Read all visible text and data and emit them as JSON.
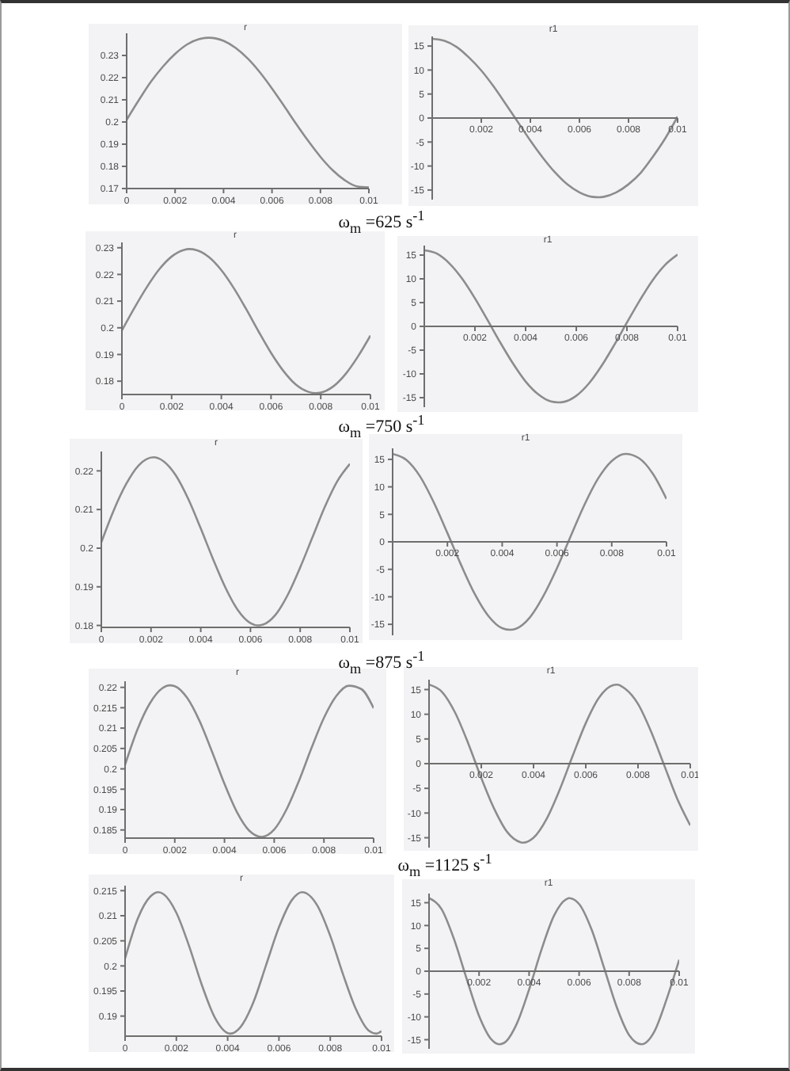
{
  "chart_data": [
    {
      "type": "line",
      "title": "r",
      "x": [
        0,
        0.0005,
        0.001,
        0.0015,
        0.002,
        0.0025,
        0.003,
        0.0034,
        0.004,
        0.0045,
        0.005,
        0.0055,
        0.006,
        0.0065,
        0.007,
        0.0075,
        0.008,
        0.0085,
        0.009,
        0.0095,
        0.01
      ],
      "values": [
        0.201,
        0.2098,
        0.2181,
        0.225,
        0.2307,
        0.235,
        0.2374,
        0.238,
        0.2366,
        0.2334,
        0.2286,
        0.2224,
        0.2151,
        0.2072,
        0.1991,
        0.1914,
        0.1843,
        0.1783,
        0.1738,
        0.171,
        0.1705
      ],
      "color": "#8c8c8c",
      "xlim": [
        0,
        0.01
      ],
      "xticks": [
        0,
        0.002,
        0.004,
        0.006,
        0.008,
        0.01
      ],
      "ylim": [
        0.17,
        0.24
      ],
      "yticks": [
        0.17,
        0.18,
        0.19,
        0.2,
        0.21,
        0.22,
        0.23
      ]
    },
    {
      "type": "line",
      "title": "r1",
      "x": [
        0,
        0.0005,
        0.001,
        0.0015,
        0.002,
        0.0025,
        0.003,
        0.0035,
        0.004,
        0.0045,
        0.005,
        0.0055,
        0.006,
        0.0065,
        0.0068,
        0.007,
        0.0075,
        0.008,
        0.0085,
        0.009,
        0.0095,
        0.01
      ],
      "values": [
        16.5,
        16.1,
        14.8,
        12.6,
        9.9,
        6.6,
        2.9,
        -0.9,
        -4.7,
        -8.2,
        -11.3,
        -13.8,
        -15.5,
        -16.4,
        -16.5,
        -16.4,
        -15.5,
        -13.8,
        -11.4,
        -8.0,
        -4.2,
        0.3
      ],
      "color": "#8c8c8c",
      "xlim": [
        0,
        0.01
      ],
      "xticks": [
        0.002,
        0.004,
        0.006,
        0.008,
        0.01
      ],
      "ylim": [
        -17,
        17
      ],
      "yticks": [
        -15,
        -10,
        -5,
        0,
        5,
        10,
        15
      ]
    },
    {
      "type": "line",
      "title": "r",
      "annotations": [
        "ω$_{m}$ =625 s$^{-1}$"
      ],
      "x": [
        0,
        0.0005,
        0.001,
        0.0015,
        0.002,
        0.0025,
        0.0027,
        0.003,
        0.0035,
        0.004,
        0.0045,
        0.005,
        0.0055,
        0.006,
        0.0065,
        0.007,
        0.0075,
        0.0078,
        0.008,
        0.0085,
        0.009,
        0.0095,
        0.01
      ],
      "values": [
        0.199,
        0.2074,
        0.2152,
        0.2219,
        0.2267,
        0.2292,
        0.2295,
        0.2291,
        0.2265,
        0.2216,
        0.2149,
        0.207,
        0.1986,
        0.1906,
        0.1838,
        0.1787,
        0.176,
        0.1755,
        0.1757,
        0.178,
        0.1827,
        0.1893,
        0.1971
      ],
      "color": "#8c8c8c",
      "xlim": [
        0,
        0.01
      ],
      "xticks": [
        0,
        0.002,
        0.004,
        0.006,
        0.008,
        0.01
      ],
      "ylim": [
        0.175,
        0.232
      ],
      "yticks": [
        0.18,
        0.19,
        0.2,
        0.21,
        0.22,
        0.23
      ]
    },
    {
      "type": "line",
      "title": "r1",
      "x": [
        0,
        0.0005,
        0.001,
        0.0015,
        0.002,
        0.0025,
        0.003,
        0.0035,
        0.004,
        0.0045,
        0.005,
        0.0053,
        0.0055,
        0.006,
        0.0065,
        0.007,
        0.0075,
        0.008,
        0.0085,
        0.009,
        0.0095,
        0.01
      ],
      "values": [
        16,
        15.3,
        13.2,
        10.0,
        5.9,
        1.3,
        -3.4,
        -7.8,
        -11.6,
        -14.3,
        -15.8,
        -16,
        -15.9,
        -14.6,
        -12.0,
        -8.3,
        -3.9,
        0.8,
        5.4,
        9.6,
        12.9,
        15.1
      ],
      "color": "#8c8c8c",
      "xlim": [
        0,
        0.01
      ],
      "xticks": [
        0.002,
        0.004,
        0.006,
        0.008,
        0.01
      ],
      "ylim": [
        -17,
        17
      ],
      "yticks": [
        -15,
        -10,
        -5,
        0,
        5,
        10,
        15
      ]
    },
    {
      "type": "line",
      "title": "r",
      "annotations": [
        "ω$_{m}$ =750 s$^{-1}$"
      ],
      "x": [
        0,
        0.0005,
        0.001,
        0.0015,
        0.0021,
        0.0025,
        0.003,
        0.0035,
        0.004,
        0.0045,
        0.005,
        0.0055,
        0.006,
        0.0063,
        0.0065,
        0.007,
        0.0075,
        0.008,
        0.0085,
        0.009,
        0.0095,
        0.01
      ],
      "values": [
        0.2015,
        0.2098,
        0.2166,
        0.2214,
        0.2235,
        0.2225,
        0.2188,
        0.2127,
        0.2051,
        0.1971,
        0.1897,
        0.1839,
        0.1806,
        0.18,
        0.1802,
        0.1827,
        0.1879,
        0.195,
        0.2029,
        0.2108,
        0.2174,
        0.2218
      ],
      "color": "#8c8c8c",
      "xlim": [
        0,
        0.01
      ],
      "xticks": [
        0,
        0.002,
        0.004,
        0.006,
        0.008,
        0.01
      ],
      "ylim": [
        0.1795,
        0.225
      ],
      "yticks": [
        0.18,
        0.19,
        0.2,
        0.21,
        0.22
      ]
    },
    {
      "type": "line",
      "title": "r1",
      "x": [
        0,
        0.0005,
        0.001,
        0.0015,
        0.002,
        0.0025,
        0.003,
        0.0035,
        0.004,
        0.0043,
        0.0045,
        0.005,
        0.0055,
        0.006,
        0.0065,
        0.007,
        0.0075,
        0.008,
        0.0085,
        0.009,
        0.0095,
        0.01
      ],
      "values": [
        16,
        14.9,
        11.9,
        7.2,
        1.6,
        -4.2,
        -9.5,
        -13.5,
        -15.7,
        -16,
        -15.8,
        -13.8,
        -9.9,
        -4.8,
        1.0,
        6.7,
        11.5,
        14.7,
        16,
        15.2,
        12.4,
        7.8
      ],
      "color": "#8c8c8c",
      "xlim": [
        0,
        0.01
      ],
      "xticks": [
        0.002,
        0.004,
        0.006,
        0.008,
        0.01
      ],
      "ylim": [
        -17,
        17
      ],
      "yticks": [
        -15,
        -10,
        -5,
        0,
        5,
        10,
        15
      ]
    },
    {
      "type": "line",
      "title": "r",
      "annotations": [
        "ω$_{m}$ =875 s$^{-1}$"
      ],
      "x": [
        0,
        0.0005,
        0.001,
        0.0015,
        0.0018,
        0.002,
        0.0025,
        0.003,
        0.0035,
        0.004,
        0.0045,
        0.005,
        0.0055,
        0.006,
        0.0065,
        0.007,
        0.0075,
        0.008,
        0.0085,
        0.009,
        0.0095,
        0.01
      ],
      "values": [
        0.201,
        0.2097,
        0.2161,
        0.2198,
        0.2205,
        0.2203,
        0.2174,
        0.2117,
        0.2042,
        0.1963,
        0.1894,
        0.1848,
        0.1833,
        0.1851,
        0.1901,
        0.1971,
        0.2051,
        0.2125,
        0.2179,
        0.2204,
        0.2196,
        0.2149
      ],
      "color": "#8c8c8c",
      "xlim": [
        0,
        0.01
      ],
      "xticks": [
        0,
        0.002,
        0.004,
        0.006,
        0.008,
        0.01
      ],
      "ylim": [
        0.183,
        0.2215
      ],
      "yticks": [
        0.185,
        0.19,
        0.195,
        0.2,
        0.205,
        0.21,
        0.215,
        0.22
      ]
    },
    {
      "type": "line",
      "title": "r1",
      "x": [
        0,
        0.0005,
        0.001,
        0.0015,
        0.002,
        0.0025,
        0.003,
        0.0035,
        0.0036,
        0.004,
        0.0045,
        0.005,
        0.0055,
        0.006,
        0.0065,
        0.007,
        0.0072,
        0.0075,
        0.008,
        0.0085,
        0.009,
        0.0095,
        0.01
      ],
      "values": [
        16,
        14.5,
        10.3,
        4.1,
        -2.9,
        -9.2,
        -13.9,
        -15.9,
        -16,
        -15.0,
        -11.2,
        -5.3,
        1.6,
        8.2,
        13.3,
        15.8,
        16,
        15.2,
        12.1,
        6.5,
        -0.3,
        -7.1,
        -12.5
      ],
      "color": "#8c8c8c",
      "xlim": [
        0,
        0.01
      ],
      "xticks": [
        0.002,
        0.004,
        0.006,
        0.008,
        0.01
      ],
      "ylim": [
        -17,
        17
      ],
      "yticks": [
        -15,
        -10,
        -5,
        0,
        5,
        10,
        15
      ]
    },
    {
      "type": "line",
      "title": "r",
      "annotations": [
        "ω$_{m}$ =1125 s$^{-1}$"
      ],
      "x": [
        0,
        0.0005,
        0.001,
        0.0013,
        0.0015,
        0.002,
        0.0025,
        0.003,
        0.0035,
        0.0041,
        0.0045,
        0.005,
        0.0055,
        0.006,
        0.0065,
        0.0069,
        0.0075,
        0.008,
        0.0085,
        0.009,
        0.0095,
        0.0098,
        0.01
      ],
      "values": [
        0.2015,
        0.2095,
        0.2139,
        0.2147,
        0.2143,
        0.2106,
        0.2039,
        0.1961,
        0.1897,
        0.1865,
        0.1878,
        0.1927,
        0.2002,
        0.2077,
        0.2131,
        0.2147,
        0.212,
        0.206,
        0.1983,
        0.1914,
        0.1871,
        0.1865,
        0.187
      ],
      "color": "#8c8c8c",
      "xlim": [
        0,
        0.01
      ],
      "xticks": [
        0,
        0.002,
        0.004,
        0.006,
        0.008,
        0.01
      ],
      "ylim": [
        0.186,
        0.216
      ],
      "yticks": [
        0.19,
        0.195,
        0.2,
        0.205,
        0.21,
        0.215
      ]
    },
    {
      "type": "line",
      "title": "r1",
      "x": [
        0,
        0.0005,
        0.001,
        0.0015,
        0.002,
        0.0025,
        0.0028,
        0.003,
        0.0035,
        0.004,
        0.0045,
        0.005,
        0.0055,
        0.0056,
        0.006,
        0.0065,
        0.007,
        0.0075,
        0.008,
        0.0085,
        0.009,
        0.0095,
        0.01
      ],
      "values": [
        16,
        13.6,
        7.0,
        -1.6,
        -9.8,
        -15.0,
        -16,
        -15.7,
        -11.6,
        -4.0,
        4.8,
        12.2,
        15.8,
        16,
        14.7,
        9.1,
        0.7,
        -7.8,
        -14.0,
        -16.0,
        -13.3,
        -6.1,
        2.5
      ],
      "color": "#8c8c8c",
      "xlim": [
        0,
        0.01
      ],
      "xticks": [
        0.002,
        0.004,
        0.006,
        0.008,
        0.01
      ],
      "ylim": [
        -17,
        17
      ],
      "yticks": [
        -15,
        -10,
        -5,
        0,
        5,
        10,
        15
      ]
    }
  ]
}
